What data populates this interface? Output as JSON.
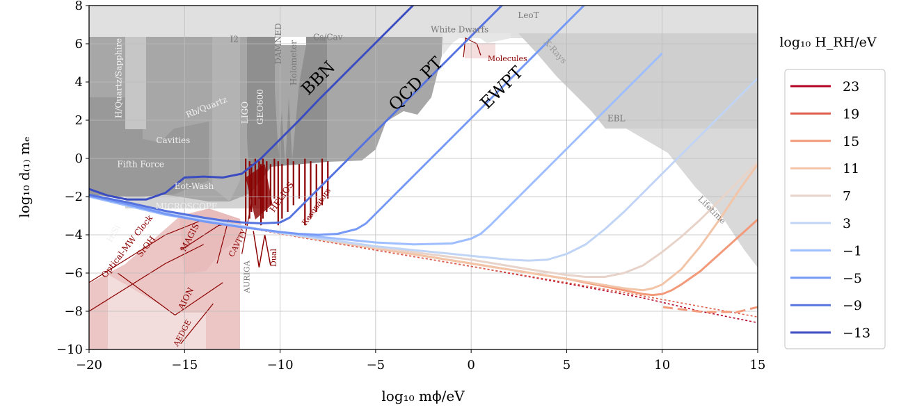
{
  "chart_data": {
    "type": "line",
    "xlabel": "log₁₀ mϕ/eV",
    "ylabel": "log₁₀ d₍₁₎ mₑ",
    "xlim": [
      -20,
      15
    ],
    "ylim": [
      -10,
      8
    ],
    "xticks": [
      -20,
      -15,
      -10,
      -5,
      0,
      5,
      10,
      15
    ],
    "yticks": [
      -10,
      -8,
      -6,
      -4,
      -2,
      0,
      2,
      4,
      6,
      8
    ],
    "xtick_labels": [
      "−20",
      "−15",
      "−10",
      "−5",
      "0",
      "5",
      "10",
      "15"
    ],
    "ytick_labels": [
      "−10",
      "−8",
      "−6",
      "−4",
      "−2",
      "0",
      "2",
      "4",
      "6",
      "8"
    ],
    "grid": true,
    "legend": {
      "title": "log₁₀ H_RH/eV",
      "placement": "right, outside",
      "entries": [
        "23",
        "19",
        "15",
        "11",
        "7",
        "3",
        "−1",
        "−5",
        "−9",
        "−13"
      ]
    },
    "series": [
      {
        "name": "−13",
        "color": "#3b4cc0",
        "x": [
          -20,
          -19,
          -18,
          -17,
          -16,
          -15,
          -14,
          -13,
          -12,
          -11,
          -10,
          -9,
          -8,
          -7,
          -6,
          -5,
          -4,
          -3,
          -2
        ],
        "y": [
          -1.6,
          -1.95,
          -2.15,
          -2.15,
          -1.8,
          -1.0,
          -0.95,
          -1.0,
          -0.8,
          0.0,
          1.0,
          2.0,
          3.05,
          4.05,
          5.05,
          6.05,
          7.05,
          8.05,
          9.05
        ]
      },
      {
        "name": "−9",
        "color": "#5572df",
        "x": [
          -20,
          -18,
          -16,
          -14,
          -13,
          -12,
          -11,
          -10,
          -9.5,
          -9,
          -8,
          -7,
          -6,
          -5,
          -4,
          -3,
          -2,
          -1,
          0,
          1,
          2
        ],
        "y": [
          -1.9,
          -2.3,
          -2.75,
          -3.1,
          -3.25,
          -3.35,
          -3.4,
          -3.35,
          -3.1,
          -2.6,
          -1.6,
          -0.6,
          0.4,
          1.4,
          2.4,
          3.4,
          4.4,
          5.4,
          6.4,
          7.4,
          8.4
        ]
      },
      {
        "name": "−5",
        "color": "#7699f6",
        "x": [
          -20,
          -18,
          -16,
          -14,
          -12,
          -10,
          -9,
          -8,
          -7,
          -6,
          -5.5,
          -5,
          -4,
          -3,
          -2,
          -1,
          0,
          1,
          2,
          3,
          4,
          5,
          6
        ],
        "y": [
          -1.95,
          -2.4,
          -2.9,
          -3.3,
          -3.6,
          -3.85,
          -3.95,
          -4.0,
          -3.95,
          -3.7,
          -3.4,
          -2.9,
          -1.9,
          -0.9,
          0.1,
          1.1,
          2.1,
          3.1,
          4.1,
          5.1,
          6.1,
          7.1,
          8.1
        ]
      },
      {
        "name": "−1",
        "color": "#9ebeff",
        "x": [
          -20,
          -16,
          -12,
          -8,
          -5,
          -3,
          -1,
          0,
          0.5,
          1,
          2,
          3,
          4,
          5,
          6,
          7,
          8,
          9,
          10
        ],
        "y": [
          -2.0,
          -2.95,
          -3.6,
          -4.1,
          -4.4,
          -4.5,
          -4.45,
          -4.2,
          -3.95,
          -3.5,
          -2.5,
          -1.5,
          -0.5,
          0.5,
          1.5,
          2.5,
          3.5,
          4.5,
          5.5
        ]
      },
      {
        "name": "3",
        "color": "#c0d4f5",
        "x": [
          -20,
          -15,
          -10,
          -5,
          0,
          2,
          3,
          4,
          5,
          6,
          7,
          8,
          9,
          10,
          11,
          12,
          13,
          14,
          15
        ],
        "y": [
          -2.0,
          -3.0,
          -3.9,
          -4.6,
          -5.1,
          -5.3,
          -5.35,
          -5.3,
          -5.0,
          -4.5,
          -3.7,
          -2.8,
          -1.8,
          -0.8,
          0.2,
          1.2,
          2.2,
          3.2,
          4.2
        ]
      },
      {
        "name": "7",
        "color": "#e7d3c9",
        "x": [
          -20,
          -15,
          -10,
          -5,
          0,
          3,
          5,
          6,
          7,
          8,
          9,
          10,
          11,
          12,
          13,
          14,
          15
        ],
        "y": [
          -2.0,
          -3.0,
          -3.9,
          -4.65,
          -5.3,
          -5.8,
          -6.1,
          -6.2,
          -6.2,
          -6.0,
          -5.6,
          -4.9,
          -4.1,
          -3.2,
          -2.2,
          -1.2,
          -0.2
        ]
      },
      {
        "name": "11",
        "color": "#f2c4a8",
        "x": [
          -20,
          -15,
          -10,
          -5,
          0,
          5,
          8,
          9,
          9.5,
          10,
          11,
          12,
          13,
          14,
          15
        ],
        "y": [
          -2.0,
          -3.0,
          -3.9,
          -4.7,
          -5.5,
          -6.3,
          -6.8,
          -6.9,
          -6.8,
          -6.6,
          -5.8,
          -4.6,
          -3.2,
          -1.7,
          -0.3
        ]
      },
      {
        "name": "15",
        "color": "#f39a7a",
        "x": [
          -20,
          -15,
          -10,
          -5,
          0,
          5,
          8,
          9,
          9.5,
          10,
          10.5,
          11,
          12,
          13,
          14,
          15
        ],
        "y": [
          -2.0,
          -3.0,
          -3.9,
          -4.7,
          -5.5,
          -6.3,
          -6.9,
          -7.1,
          -7.15,
          -7.1,
          -6.9,
          -6.6,
          -5.9,
          -5.0,
          -4.1,
          -3.2
        ]
      },
      {
        "name": "19",
        "color": "#dd5f4b",
        "x": [
          -20,
          -15,
          -10,
          -5,
          0,
          5,
          9,
          12,
          15
        ],
        "y": [
          -2.0,
          -3.0,
          -3.95,
          -4.8,
          -5.65,
          -6.5,
          -7.2,
          -7.75,
          -8.3
        ]
      },
      {
        "name": "23",
        "color": "#b40426",
        "x": [
          -20,
          -15,
          -10,
          -5,
          0,
          5,
          9,
          12,
          15
        ],
        "y": [
          -2.0,
          -3.0,
          -3.95,
          -4.8,
          -5.65,
          -6.55,
          -7.3,
          -8.0,
          -8.6
        ]
      }
    ],
    "region_labels": [
      "Fifth Force",
      "Cavities",
      "Rb/Quartz",
      "H/Quartz/Sapphire",
      "I2",
      "DAMNED",
      "Holometer",
      "Cs/Cav",
      "LIGO",
      "GEO600",
      "Eot-Wash",
      "MICROSCOPE",
      "H/Si",
      "Optical-MW Clock",
      "SrOH",
      "MAGIS",
      "AION",
      "AEDGE",
      "CAVITY",
      "AURIGA",
      "Dual",
      "HELIOS",
      "Resonators",
      "White Dwarfs",
      "Molecules",
      "LeoT",
      "X-Rays",
      "EBL",
      "Lifetime"
    ],
    "annotations": [
      "BBN",
      "QCD PT",
      "EWPT"
    ]
  }
}
